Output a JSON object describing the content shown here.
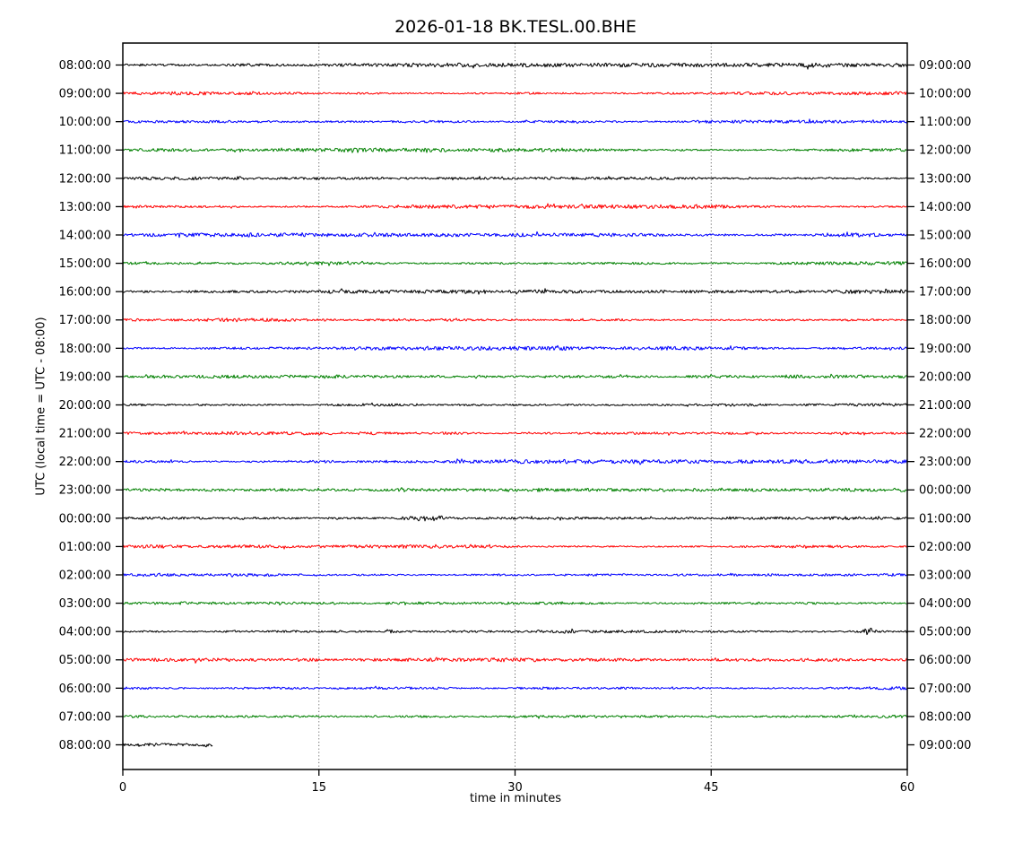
{
  "chart_data": {
    "type": "line",
    "subtype": "helicorder-dayplot-seismogram",
    "title": "2026-01-18 BK.TESL.00.BHE",
    "xlabel": "time in minutes",
    "ylabel": "UTC (local time = UTC - 08:00)",
    "x_range_minutes": [
      0,
      60
    ],
    "x_ticks": [
      0,
      15,
      30,
      45,
      60
    ],
    "grid_minutes": [
      15,
      30,
      45
    ],
    "grid_style": "vertical dotted",
    "legend": "none",
    "axis_color": "#000000",
    "trace_color_cycle": [
      "#000000",
      "#ff0000",
      "#0000ff",
      "#008000"
    ],
    "rows": [
      {
        "left_label": "08:00:00",
        "right_label": "09:00:00",
        "color": "#000000",
        "coverage_minutes": [
          0,
          60
        ]
      },
      {
        "left_label": "09:00:00",
        "right_label": "10:00:00",
        "color": "#ff0000",
        "coverage_minutes": [
          0,
          60
        ]
      },
      {
        "left_label": "10:00:00",
        "right_label": "11:00:00",
        "color": "#0000ff",
        "coverage_minutes": [
          0,
          60
        ]
      },
      {
        "left_label": "11:00:00",
        "right_label": "12:00:00",
        "color": "#008000",
        "coverage_minutes": [
          0,
          60
        ]
      },
      {
        "left_label": "12:00:00",
        "right_label": "13:00:00",
        "color": "#000000",
        "coverage_minutes": [
          0,
          60
        ]
      },
      {
        "left_label": "13:00:00",
        "right_label": "14:00:00",
        "color": "#ff0000",
        "coverage_minutes": [
          0,
          60
        ]
      },
      {
        "left_label": "14:00:00",
        "right_label": "15:00:00",
        "color": "#0000ff",
        "coverage_minutes": [
          0,
          60
        ]
      },
      {
        "left_label": "15:00:00",
        "right_label": "16:00:00",
        "color": "#008000",
        "coverage_minutes": [
          0,
          60
        ]
      },
      {
        "left_label": "16:00:00",
        "right_label": "17:00:00",
        "color": "#000000",
        "coverage_minutes": [
          0,
          60
        ]
      },
      {
        "left_label": "17:00:00",
        "right_label": "18:00:00",
        "color": "#ff0000",
        "coverage_minutes": [
          0,
          60
        ]
      },
      {
        "left_label": "18:00:00",
        "right_label": "19:00:00",
        "color": "#0000ff",
        "coverage_minutes": [
          0,
          60
        ]
      },
      {
        "left_label": "19:00:00",
        "right_label": "20:00:00",
        "color": "#008000",
        "coverage_minutes": [
          0,
          60
        ]
      },
      {
        "left_label": "20:00:00",
        "right_label": "21:00:00",
        "color": "#000000",
        "coverage_minutes": [
          0,
          60
        ]
      },
      {
        "left_label": "21:00:00",
        "right_label": "22:00:00",
        "color": "#ff0000",
        "coverage_minutes": [
          0,
          60
        ]
      },
      {
        "left_label": "22:00:00",
        "right_label": "23:00:00",
        "color": "#0000ff",
        "coverage_minutes": [
          0,
          60
        ]
      },
      {
        "left_label": "23:00:00",
        "right_label": "00:00:00",
        "color": "#008000",
        "coverage_minutes": [
          0,
          60
        ]
      },
      {
        "left_label": "00:00:00",
        "right_label": "01:00:00",
        "color": "#000000",
        "coverage_minutes": [
          0,
          60
        ]
      },
      {
        "left_label": "01:00:00",
        "right_label": "02:00:00",
        "color": "#ff0000",
        "coverage_minutes": [
          0,
          60
        ]
      },
      {
        "left_label": "02:00:00",
        "right_label": "03:00:00",
        "color": "#0000ff",
        "coverage_minutes": [
          0,
          60
        ]
      },
      {
        "left_label": "03:00:00",
        "right_label": "04:00:00",
        "color": "#008000",
        "coverage_minutes": [
          0,
          60
        ]
      },
      {
        "left_label": "04:00:00",
        "right_label": "05:00:00",
        "color": "#000000",
        "coverage_minutes": [
          0,
          60
        ]
      },
      {
        "left_label": "05:00:00",
        "right_label": "06:00:00",
        "color": "#ff0000",
        "coverage_minutes": [
          0,
          60
        ]
      },
      {
        "left_label": "06:00:00",
        "right_label": "07:00:00",
        "color": "#0000ff",
        "coverage_minutes": [
          0,
          60
        ]
      },
      {
        "left_label": "07:00:00",
        "right_label": "08:00:00",
        "color": "#008000",
        "coverage_minutes": [
          0,
          60
        ]
      },
      {
        "left_label": "08:00:00",
        "right_label": "09:00:00",
        "color": "#000000",
        "coverage_minutes": [
          0,
          6.9
        ]
      }
    ],
    "noise_bursts": [
      {
        "row": 0,
        "minute": 10.0,
        "width_min": 2.2,
        "amp": 0.5
      },
      {
        "row": 0,
        "minute": 52.8,
        "width_min": 0.7,
        "amp": 0.9
      },
      {
        "row": 4,
        "minute": 8.3,
        "width_min": 0.6,
        "amp": 0.9
      },
      {
        "row": 6,
        "minute": 56.6,
        "width_min": 0.5,
        "amp": 1.1
      },
      {
        "row": 16,
        "minute": 23.3,
        "width_min": 1.2,
        "amp": 1.9
      },
      {
        "row": 20,
        "minute": 20.6,
        "width_min": 0.3,
        "amp": 1.4
      },
      {
        "row": 20,
        "minute": 57.1,
        "width_min": 0.4,
        "amp": 2.3
      }
    ]
  }
}
